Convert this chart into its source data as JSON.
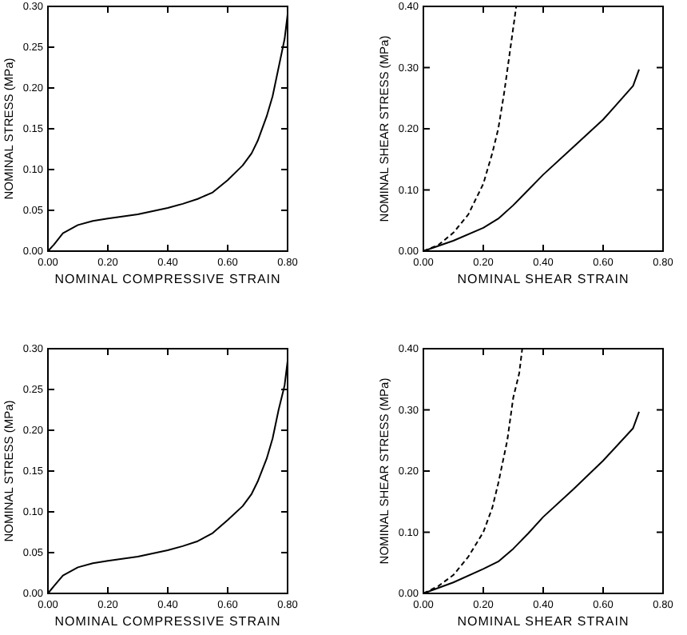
{
  "chart_data": [
    {
      "type": "line",
      "xlabel": "NOMINAL COMPRESSIVE STRAIN",
      "ylabel": "NOMINAL STRESS (MPa)",
      "xlim": [
        0,
        0.8
      ],
      "ylim": [
        0,
        0.3
      ],
      "xticks": [
        {
          "value": 0,
          "label": "0.00"
        },
        {
          "value": 0.2,
          "label": "0.20"
        },
        {
          "value": 0.4,
          "label": "0.40"
        },
        {
          "value": 0.6,
          "label": "0.60"
        },
        {
          "value": 0.8,
          "label": "0.80"
        }
      ],
      "yticks": [
        {
          "value": 0,
          "label": "0.00"
        },
        {
          "value": 0.05,
          "label": "0.05"
        },
        {
          "value": 0.1,
          "label": "0.10"
        },
        {
          "value": 0.15,
          "label": "0.15"
        },
        {
          "value": 0.2,
          "label": "0.20"
        },
        {
          "value": 0.25,
          "label": "0.25"
        },
        {
          "value": 0.3,
          "label": "0.30"
        }
      ],
      "series": [
        {
          "color": "#000000",
          "line_style": "solid",
          "x": [
            0,
            0.02,
            0.05,
            0.1,
            0.15,
            0.2,
            0.3,
            0.4,
            0.45,
            0.5,
            0.55,
            0.6,
            0.65,
            0.68,
            0.7,
            0.73,
            0.75,
            0.77,
            0.79,
            0.8
          ],
          "values": [
            0,
            0.008,
            0.022,
            0.032,
            0.037,
            0.04,
            0.045,
            0.053,
            0.058,
            0.064,
            0.072,
            0.087,
            0.105,
            0.12,
            0.135,
            0.165,
            0.19,
            0.225,
            0.26,
            0.29
          ]
        }
      ]
    },
    {
      "type": "line",
      "xlabel": "NOMINAL SHEAR STRAIN",
      "ylabel": "NOMINAL SHEAR STRESS (MPa)",
      "xlim": [
        0,
        0.8
      ],
      "ylim": [
        0,
        0.4
      ],
      "xticks": [
        {
          "value": 0,
          "label": "0.00"
        },
        {
          "value": 0.2,
          "label": "0.20"
        },
        {
          "value": 0.4,
          "label": "0.40"
        },
        {
          "value": 0.6,
          "label": "0.60"
        },
        {
          "value": 0.8,
          "label": "0.80"
        }
      ],
      "yticks": [
        {
          "value": 0,
          "label": "0.00"
        },
        {
          "value": 0.1,
          "label": "0.10"
        },
        {
          "value": 0.2,
          "label": "0.20"
        },
        {
          "value": 0.3,
          "label": "0.30"
        },
        {
          "value": 0.4,
          "label": "0.40"
        }
      ],
      "series": [
        {
          "color": "#000000",
          "line_style": "solid",
          "x": [
            0,
            0.1,
            0.2,
            0.25,
            0.3,
            0.35,
            0.4,
            0.5,
            0.6,
            0.7,
            0.72
          ],
          "values": [
            0,
            0.017,
            0.038,
            0.053,
            0.075,
            0.1,
            0.125,
            0.17,
            0.215,
            0.27,
            0.297
          ]
        },
        {
          "color": "#000000",
          "line_style": "dashed",
          "x": [
            0,
            0.05,
            0.1,
            0.15,
            0.2,
            0.23,
            0.25,
            0.27,
            0.29,
            0.31
          ],
          "values": [
            0,
            0.01,
            0.03,
            0.06,
            0.11,
            0.16,
            0.2,
            0.26,
            0.33,
            0.4
          ]
        }
      ]
    },
    {
      "type": "line",
      "xlabel": "NOMINAL COMPRESSIVE STRAIN",
      "ylabel": "NOMINAL STRESS (MPa)",
      "xlim": [
        0,
        0.8
      ],
      "ylim": [
        0,
        0.3
      ],
      "xticks": [
        {
          "value": 0,
          "label": "0.00"
        },
        {
          "value": 0.2,
          "label": "0.20"
        },
        {
          "value": 0.4,
          "label": "0.40"
        },
        {
          "value": 0.6,
          "label": "0.60"
        },
        {
          "value": 0.8,
          "label": "0.80"
        }
      ],
      "yticks": [
        {
          "value": 0,
          "label": "0.00"
        },
        {
          "value": 0.05,
          "label": "0.05"
        },
        {
          "value": 0.1,
          "label": "0.10"
        },
        {
          "value": 0.15,
          "label": "0.15"
        },
        {
          "value": 0.2,
          "label": "0.20"
        },
        {
          "value": 0.25,
          "label": "0.25"
        },
        {
          "value": 0.3,
          "label": "0.30"
        }
      ],
      "series": [
        {
          "color": "#000000",
          "line_style": "solid",
          "x": [
            0,
            0.02,
            0.05,
            0.1,
            0.15,
            0.2,
            0.3,
            0.4,
            0.45,
            0.5,
            0.55,
            0.6,
            0.65,
            0.68,
            0.7,
            0.73,
            0.75,
            0.77,
            0.79,
            0.8
          ],
          "values": [
            0,
            0.009,
            0.022,
            0.032,
            0.037,
            0.04,
            0.045,
            0.053,
            0.058,
            0.064,
            0.074,
            0.09,
            0.107,
            0.122,
            0.137,
            0.165,
            0.19,
            0.225,
            0.255,
            0.285
          ]
        }
      ]
    },
    {
      "type": "line",
      "xlabel": "NOMINAL SHEAR STRAIN",
      "ylabel": "NOMINAL SHEAR STRESS (MPa)",
      "xlim": [
        0,
        0.8
      ],
      "ylim": [
        0,
        0.4
      ],
      "xticks": [
        {
          "value": 0,
          "label": "0.00"
        },
        {
          "value": 0.2,
          "label": "0.20"
        },
        {
          "value": 0.4,
          "label": "0.40"
        },
        {
          "value": 0.6,
          "label": "0.60"
        },
        {
          "value": 0.8,
          "label": "0.80"
        }
      ],
      "yticks": [
        {
          "value": 0,
          "label": "0.00"
        },
        {
          "value": 0.1,
          "label": "0.10"
        },
        {
          "value": 0.2,
          "label": "0.20"
        },
        {
          "value": 0.3,
          "label": "0.30"
        },
        {
          "value": 0.4,
          "label": "0.40"
        }
      ],
      "series": [
        {
          "color": "#000000",
          "line_style": "solid",
          "x": [
            0,
            0.1,
            0.2,
            0.25,
            0.3,
            0.35,
            0.4,
            0.5,
            0.6,
            0.7,
            0.72
          ],
          "values": [
            0,
            0.018,
            0.04,
            0.052,
            0.073,
            0.098,
            0.125,
            0.17,
            0.217,
            0.27,
            0.297
          ]
        },
        {
          "color": "#000000",
          "line_style": "dashed",
          "x": [
            0,
            0.05,
            0.1,
            0.15,
            0.2,
            0.23,
            0.25,
            0.28,
            0.3,
            0.32,
            0.33
          ],
          "values": [
            0,
            0.012,
            0.03,
            0.06,
            0.1,
            0.14,
            0.18,
            0.25,
            0.32,
            0.36,
            0.4
          ]
        }
      ]
    }
  ]
}
